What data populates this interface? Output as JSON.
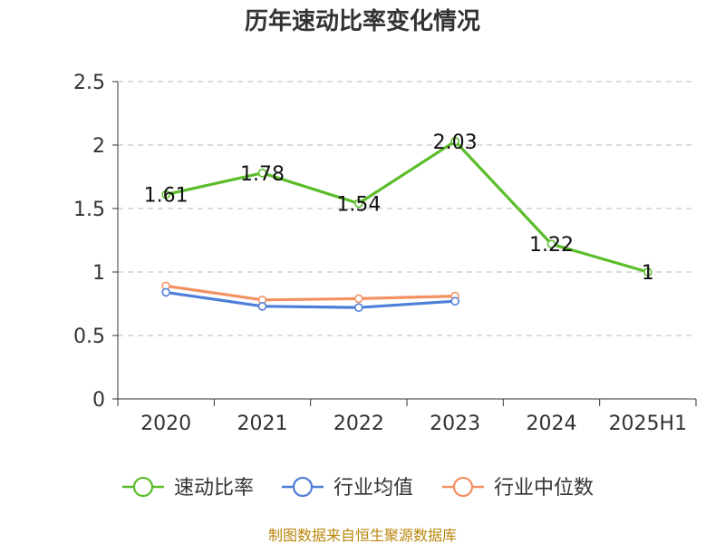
{
  "chart_data": {
    "type": "line",
    "title": "历年速动比率变化情况",
    "categories": [
      "2020",
      "2021",
      "2022",
      "2023",
      "2024",
      "2025H1"
    ],
    "ylim": [
      0,
      2.5
    ],
    "yticks": [
      "0",
      "0.5",
      "1",
      "1.5",
      "2",
      "2.5"
    ],
    "grid": true,
    "legend_position": "bottom",
    "series": [
      {
        "name": "速动比率",
        "color": "#5cbd2a",
        "values": [
          1.61,
          1.78,
          1.54,
          2.03,
          1.22,
          1.0
        ],
        "labels": [
          "1.61",
          "1.78",
          "1.54",
          "2.03",
          "1.22",
          "1"
        ]
      },
      {
        "name": "行业均值",
        "color": "#4e7fd8",
        "values": [
          0.84,
          0.73,
          0.72,
          0.77,
          null,
          null
        ]
      },
      {
        "name": "行业中位数",
        "color": "#f39163",
        "values": [
          0.89,
          0.78,
          0.79,
          0.81,
          null,
          null
        ]
      }
    ]
  },
  "source_text": "制图数据来自恒生聚源数据库"
}
